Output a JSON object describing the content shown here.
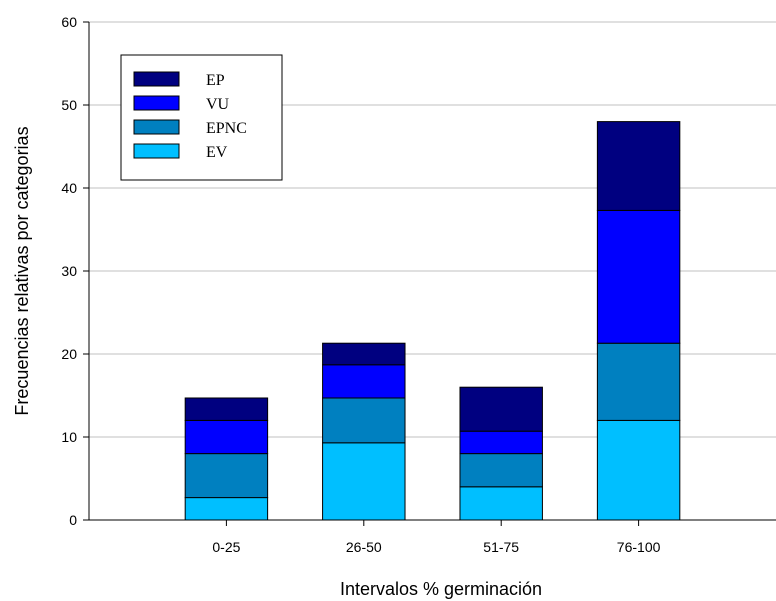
{
  "chart_data": {
    "type": "bar",
    "stacked": true,
    "categories": [
      "0-25",
      "26-50",
      "51-75",
      "76-100"
    ],
    "series": [
      {
        "name": "EV",
        "color": "#00bfff",
        "values": [
          2.7,
          9.3,
          4.0,
          12.0
        ]
      },
      {
        "name": "EPNC",
        "color": "#0080c0",
        "values": [
          5.3,
          5.4,
          4.0,
          9.3
        ]
      },
      {
        "name": "VU",
        "color": "#0000ff",
        "values": [
          4.0,
          4.0,
          2.7,
          16.0
        ]
      },
      {
        "name": "EP",
        "color": "#000080",
        "values": [
          2.7,
          2.6,
          5.3,
          10.7
        ]
      }
    ],
    "legend_order": [
      "EP",
      "VU",
      "EPNC",
      "EV"
    ],
    "xlabel": "Intervalos % germinación",
    "ylabel": "Frecuencias relativas por categorias",
    "ylim": [
      0,
      60
    ],
    "yticks": [
      0,
      10,
      20,
      30,
      40,
      50,
      60
    ],
    "grid": true,
    "legend_position": "top-left"
  }
}
